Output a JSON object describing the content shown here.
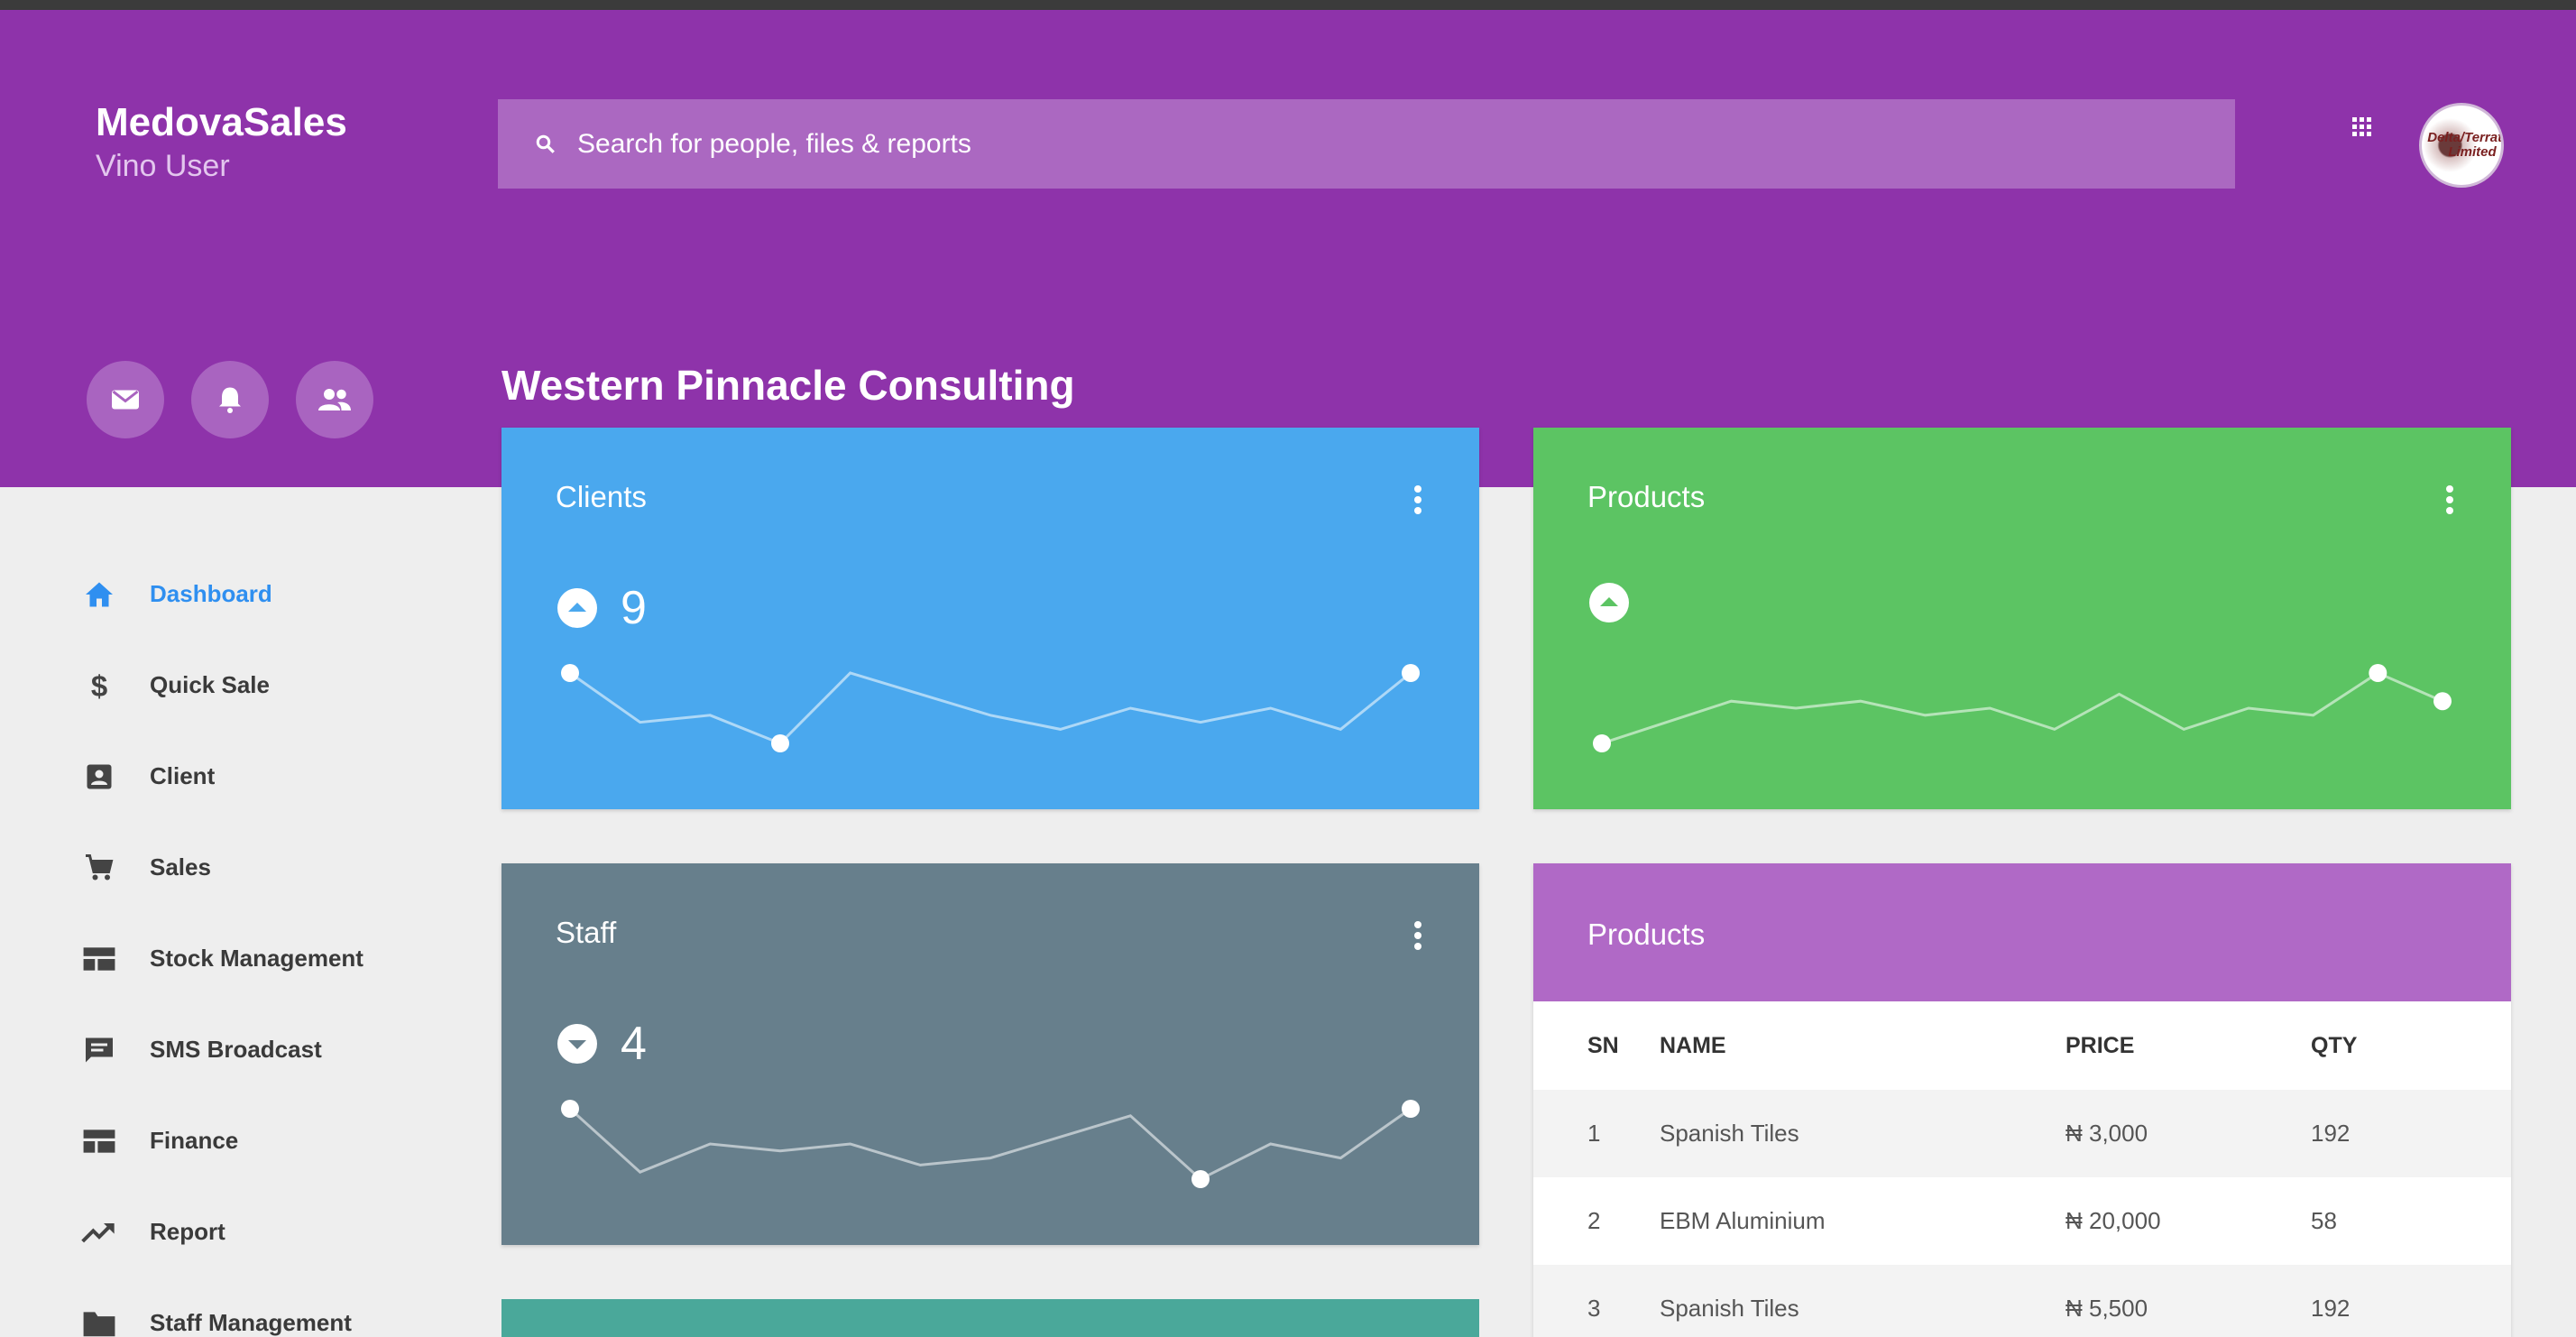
{
  "app": {
    "name": "MedovaSales",
    "user": "Vino User"
  },
  "search": {
    "placeholder": "Search for people, files & reports"
  },
  "avatar": {
    "text": "Delta/Terratek Limited"
  },
  "header_buttons": [
    "mail-icon",
    "bell-icon",
    "people-icon"
  ],
  "page_title": "Western Pinnacle Consulting",
  "sidebar": {
    "items": [
      {
        "label": "Dashboard",
        "icon": "home-icon",
        "active": true
      },
      {
        "label": "Quick Sale",
        "icon": "dollar-icon"
      },
      {
        "label": "Client",
        "icon": "contact-icon"
      },
      {
        "label": "Sales",
        "icon": "cart-icon"
      },
      {
        "label": "Stock Management",
        "icon": "table-icon"
      },
      {
        "label": "SMS Broadcast",
        "icon": "message-icon"
      },
      {
        "label": "Finance",
        "icon": "table-icon"
      },
      {
        "label": "Report",
        "icon": "trending-up-icon"
      },
      {
        "label": "Staff Management",
        "icon": "folder-icon"
      }
    ]
  },
  "cards": {
    "clients": {
      "title": "Clients",
      "trend": "up",
      "value": "9",
      "color": "#4aa8ee",
      "spark": [
        10,
        3,
        4,
        0,
        10,
        7,
        4,
        2,
        5,
        3,
        5,
        2,
        10
      ],
      "markers": [
        0,
        3,
        12
      ]
    },
    "products": {
      "title": "Products",
      "trend": "up",
      "value": "",
      "color": "#5cc463",
      "spark": [
        0,
        3,
        6,
        5,
        6,
        4,
        5,
        2,
        7,
        2,
        5,
        4,
        10,
        6
      ],
      "markers": [
        0,
        12,
        13
      ]
    },
    "staff": {
      "title": "Staff",
      "trend": "down",
      "value": "4",
      "color": "#677f8c",
      "spark": [
        10,
        1,
        5,
        4,
        5,
        2,
        3,
        6,
        9,
        0,
        5,
        3,
        10
      ],
      "markers": [
        0,
        9,
        12
      ]
    }
  },
  "products_table": {
    "title": "Products",
    "headers": [
      "SN",
      "NAME",
      "PRICE",
      "QTY"
    ],
    "rows": [
      [
        "1",
        "Spanish Tiles",
        "₦ 3,000",
        "192"
      ],
      [
        "2",
        "EBM Aluminium",
        "₦ 20,000",
        "58"
      ],
      [
        "3",
        "Spanish Tiles",
        "₦ 5,500",
        "192"
      ]
    ],
    "header_color": "#b069c6"
  },
  "colors": {
    "header": "#8e33aa",
    "accent": "#2f8ff0",
    "teal_card": "#4aa89a"
  }
}
